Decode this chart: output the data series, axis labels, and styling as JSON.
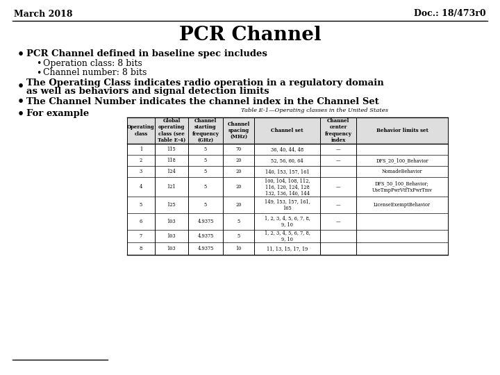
{
  "header_left": "March 2018",
  "header_right": "Doc.: 18/473r0",
  "title": "PCR Channel",
  "bullet1": "PCR Channel defined in baseline spec includes",
  "sub_bullet1": "Operation class: 8 bits",
  "sub_bullet2": "Channel number: 8 bits",
  "bullet2_line1": "The Operating Class indicates radio operation in a regulatory domain",
  "bullet2_line2": "as well as behaviors and signal detection limits",
  "bullet3": "The Channel Number indicates the channel index in the Channel Set",
  "bullet4": "For example",
  "table_title": "Table E-1—Operating classes in the United States",
  "table_headers": [
    "Operating\nclass",
    "Global\noperating\nclass (see\nTable E-4)",
    "Channel\nstarting\nfrequency\n(GHz)",
    "Channel\nspacing\n(MHz)",
    "Channel set",
    "Channel\ncenter\nfrequency\nindex",
    "Behavior limits set"
  ],
  "table_rows": [
    [
      "1",
      "115",
      "5",
      "70",
      "36, 40, 44, 48",
      "—",
      ""
    ],
    [
      "2",
      "118",
      "5",
      "20",
      "52, 56, 60, 64",
      "—",
      "DFS_20_100_Behavior"
    ],
    [
      "3",
      "124",
      "5",
      "20",
      "140, 153, 157, 161",
      "",
      "NomadeBehavior"
    ],
    [
      "4",
      "121",
      "5",
      "20",
      "100, 104, 108, 112,\n116, 120, 124, 128\n132, 136, 140, 144",
      "—",
      "DFS_50_100_Behavior;\nUseTmpPwrVtfTxPwrTmv"
    ],
    [
      "5",
      "125",
      "5",
      "20",
      "149, 153, 157, 161,\n165",
      "—",
      "LicenseExemptBehavior"
    ],
    [
      "6",
      "103",
      "4.9375",
      "5",
      "1, 2, 3, 4, 5, 6, 7, 8,\n9, 10",
      "—",
      ""
    ],
    [
      "7",
      "103",
      "4.9375",
      "5",
      "1, 2, 3, 4, 5, 6, 7, 8,\n9, 10",
      "",
      ""
    ],
    [
      "8",
      "103",
      "4.9375",
      "10",
      "11, 13, 15, 17, 19",
      "",
      ""
    ]
  ],
  "background_color": "#ffffff",
  "text_color": "#000000",
  "header_line_color": "#000000",
  "footer_line_color": "#000000",
  "header_fontsize": 9,
  "title_fontsize": 20,
  "bullet_fontsize": 9.5,
  "sub_bullet_fontsize": 9,
  "table_header_fontsize": 5,
  "table_data_fontsize": 4.8
}
